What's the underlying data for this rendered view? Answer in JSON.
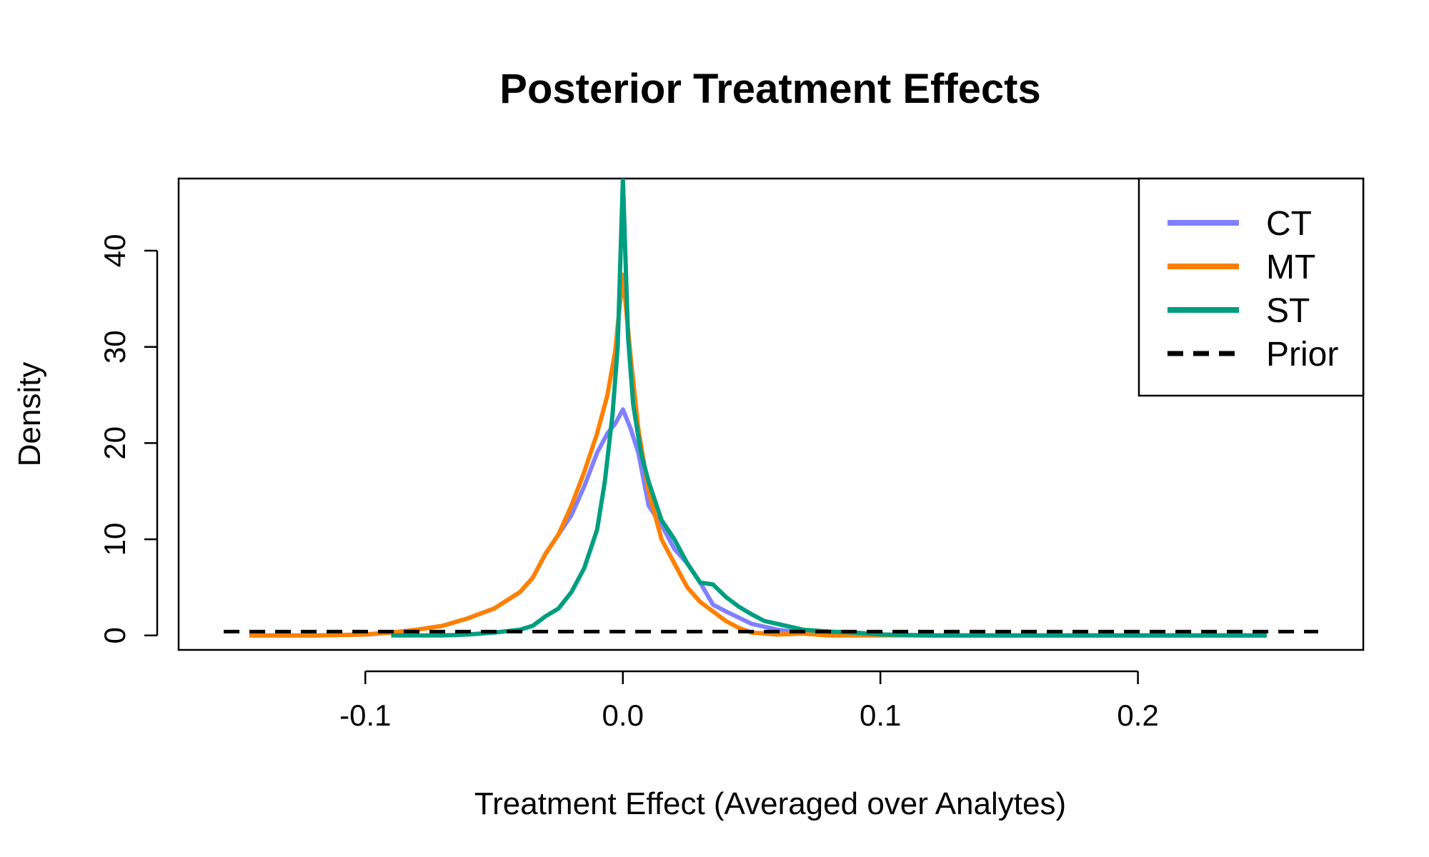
{
  "chart_data": {
    "type": "line",
    "title": "Posterior Treatment Effects",
    "xlabel": "Treatment Effect (Averaged over Analytes)",
    "ylabel": "Density",
    "xlim": [
      -0.1725,
      0.2875
    ],
    "ylim": [
      -1.5,
      47.5
    ],
    "x_ticks": [
      -0.1,
      0.0,
      0.1,
      0.2
    ],
    "x_tick_labels": [
      "-0.1",
      "0.0",
      "0.1",
      "0.2"
    ],
    "y_ticks": [
      0,
      10,
      20,
      30,
      40
    ],
    "y_tick_labels": [
      "0",
      "10",
      "20",
      "30",
      "40"
    ],
    "grid": false,
    "legend_position": "top-right",
    "series": [
      {
        "name": "CT",
        "color": "#8080ff",
        "dash": "solid",
        "x": [
          -0.145,
          -0.12,
          -0.1,
          -0.09,
          -0.08,
          -0.07,
          -0.06,
          -0.05,
          -0.04,
          -0.035,
          -0.03,
          -0.025,
          -0.02,
          -0.015,
          -0.01,
          -0.006,
          -0.003,
          0.0,
          0.003,
          0.006,
          0.01,
          0.015,
          0.02,
          0.025,
          0.03,
          0.035,
          0.04,
          0.05,
          0.06,
          0.07,
          0.08,
          0.1,
          0.12,
          0.15,
          0.2,
          0.25
        ],
        "values": [
          0,
          0,
          0.1,
          0.3,
          0.6,
          1.0,
          1.8,
          2.8,
          4.5,
          6.0,
          8.5,
          10.5,
          12.5,
          15.5,
          19.0,
          21.0,
          22.0,
          23.5,
          21.5,
          19.0,
          13.5,
          11.5,
          9.0,
          7.5,
          5.5,
          3.2,
          2.5,
          1.2,
          0.6,
          0.3,
          0.15,
          0.05,
          0,
          0,
          0,
          0
        ]
      },
      {
        "name": "MT",
        "color": "#ff8000",
        "dash": "solid",
        "x": [
          -0.145,
          -0.12,
          -0.1,
          -0.09,
          -0.08,
          -0.07,
          -0.06,
          -0.05,
          -0.04,
          -0.035,
          -0.03,
          -0.025,
          -0.02,
          -0.015,
          -0.01,
          -0.006,
          -0.003,
          0.0,
          0.003,
          0.006,
          0.01,
          0.015,
          0.02,
          0.025,
          0.03,
          0.035,
          0.04,
          0.045,
          0.05,
          0.06,
          0.07,
          0.08,
          0.1,
          0.12,
          0.15,
          0.2,
          0.25
        ],
        "values": [
          0,
          0,
          0.1,
          0.3,
          0.6,
          1.0,
          1.8,
          2.8,
          4.5,
          6.0,
          8.5,
          10.5,
          13.5,
          17.0,
          21.0,
          25.0,
          29.5,
          37.5,
          29.0,
          21.5,
          15.0,
          10.0,
          7.5,
          5.0,
          3.5,
          2.5,
          1.5,
          0.8,
          0.3,
          0.1,
          0.2,
          0,
          0,
          0,
          0,
          0,
          0
        ]
      },
      {
        "name": "ST",
        "color": "#009e80",
        "dash": "solid",
        "x": [
          -0.09,
          -0.08,
          -0.07,
          -0.06,
          -0.05,
          -0.04,
          -0.035,
          -0.03,
          -0.025,
          -0.02,
          -0.015,
          -0.01,
          -0.007,
          -0.004,
          -0.002,
          0.0,
          0.002,
          0.004,
          0.007,
          0.01,
          0.015,
          0.02,
          0.025,
          0.03,
          0.035,
          0.04,
          0.045,
          0.05,
          0.055,
          0.06,
          0.07,
          0.08,
          0.09,
          0.1,
          0.12,
          0.15,
          0.2,
          0.25
        ],
        "values": [
          0,
          0,
          0,
          0.1,
          0.3,
          0.6,
          1.0,
          2.0,
          2.8,
          4.5,
          7.0,
          11.0,
          16.0,
          23.0,
          30.0,
          47.5,
          31.0,
          24.0,
          19.0,
          16.0,
          12.0,
          10.0,
          7.5,
          5.5,
          5.3,
          4.0,
          3.0,
          2.2,
          1.5,
          1.2,
          0.6,
          0.4,
          0.3,
          0.1,
          0,
          0,
          0,
          0
        ]
      },
      {
        "name": "Prior",
        "color": "#000000",
        "dash": "dashed",
        "x": [
          -0.155,
          0.27
        ],
        "values": [
          0.4,
          0.4
        ]
      }
    ]
  }
}
